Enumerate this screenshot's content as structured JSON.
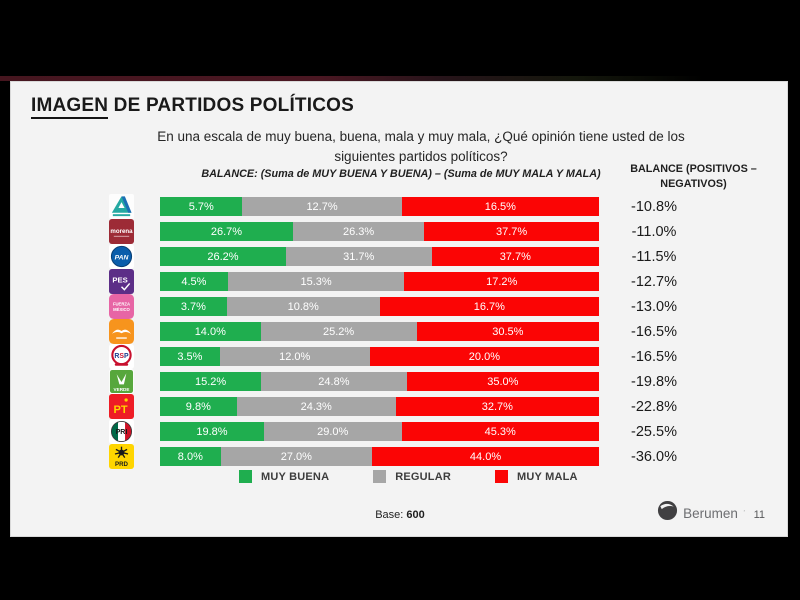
{
  "page": {
    "title_underlined": "IMAGEN",
    "title_rest": " DE PARTIDOS POLÍTICOS",
    "subtitle_line1": "En una escala de muy buena, buena, mala y muy mala, ¿Qué opinión tiene usted de los",
    "subtitle_line2": "siguientes partidos políticos?",
    "balance_formula": "BALANCE: (Suma de MUY BUENA Y BUENA) – (Suma de MUY MALA Y MALA)",
    "balance_header_line1": "BALANCE (POSITIVOS –",
    "balance_header_line2": "NEGATIVOS)",
    "base_label": "Base:",
    "base_value": "600",
    "brand_name": "Berumen",
    "page_number": "11"
  },
  "legend": [
    {
      "label": "MUY BUENA",
      "color": "#1fae4f"
    },
    {
      "label": "REGULAR",
      "color": "#a6a6a6"
    },
    {
      "label": "MUY MALA",
      "color": "#fb0505"
    }
  ],
  "chart_data": {
    "type": "bar",
    "variant": "horizontal-stacked-normalized",
    "title": "IMAGEN DE PARTIDOS POLÍTICOS",
    "series_names": [
      "MUY BUENA",
      "REGULAR",
      "MUY MALA"
    ],
    "colors": [
      "#1fae4f",
      "#a6a6a6",
      "#fb0505"
    ],
    "value_suffix": "%",
    "legend_position": "bottom",
    "rows": [
      {
        "party": "Nueva Alianza",
        "logo": "nueva-alianza-logo",
        "values": [
          5.7,
          12.7,
          16.5
        ],
        "balance": "-10.8%"
      },
      {
        "party": "Morena",
        "logo": "morena-logo",
        "values": [
          26.7,
          26.3,
          37.7
        ],
        "balance": "-11.0%"
      },
      {
        "party": "PAN",
        "logo": "pan-logo",
        "values": [
          26.2,
          31.7,
          37.7
        ],
        "balance": "-11.5%"
      },
      {
        "party": "PES",
        "logo": "pes-logo",
        "values": [
          4.5,
          15.3,
          17.2
        ],
        "balance": "-12.7%"
      },
      {
        "party": "Fuerza por México",
        "logo": "fuerza-mexico-logo",
        "values": [
          3.7,
          10.8,
          16.7
        ],
        "balance": "-13.0%"
      },
      {
        "party": "Movimiento Ciudadano",
        "logo": "movimiento-ciudadano-logo",
        "values": [
          14.0,
          25.2,
          30.5
        ],
        "balance": "-16.5%"
      },
      {
        "party": "RSP",
        "logo": "rsp-logo",
        "values": [
          3.5,
          12.0,
          20.0
        ],
        "balance": "-16.5%"
      },
      {
        "party": "Partido Verde",
        "logo": "verde-logo",
        "values": [
          15.2,
          24.8,
          35.0
        ],
        "balance": "-19.8%"
      },
      {
        "party": "PT",
        "logo": "pt-logo",
        "values": [
          9.8,
          24.3,
          32.7
        ],
        "balance": "-22.8%"
      },
      {
        "party": "PRI",
        "logo": "pri-logo",
        "values": [
          19.8,
          29.0,
          45.3
        ],
        "balance": "-25.5%"
      },
      {
        "party": "PRD",
        "logo": "prd-logo",
        "values": [
          8.0,
          27.0,
          44.0
        ],
        "balance": "-36.0%"
      }
    ]
  }
}
